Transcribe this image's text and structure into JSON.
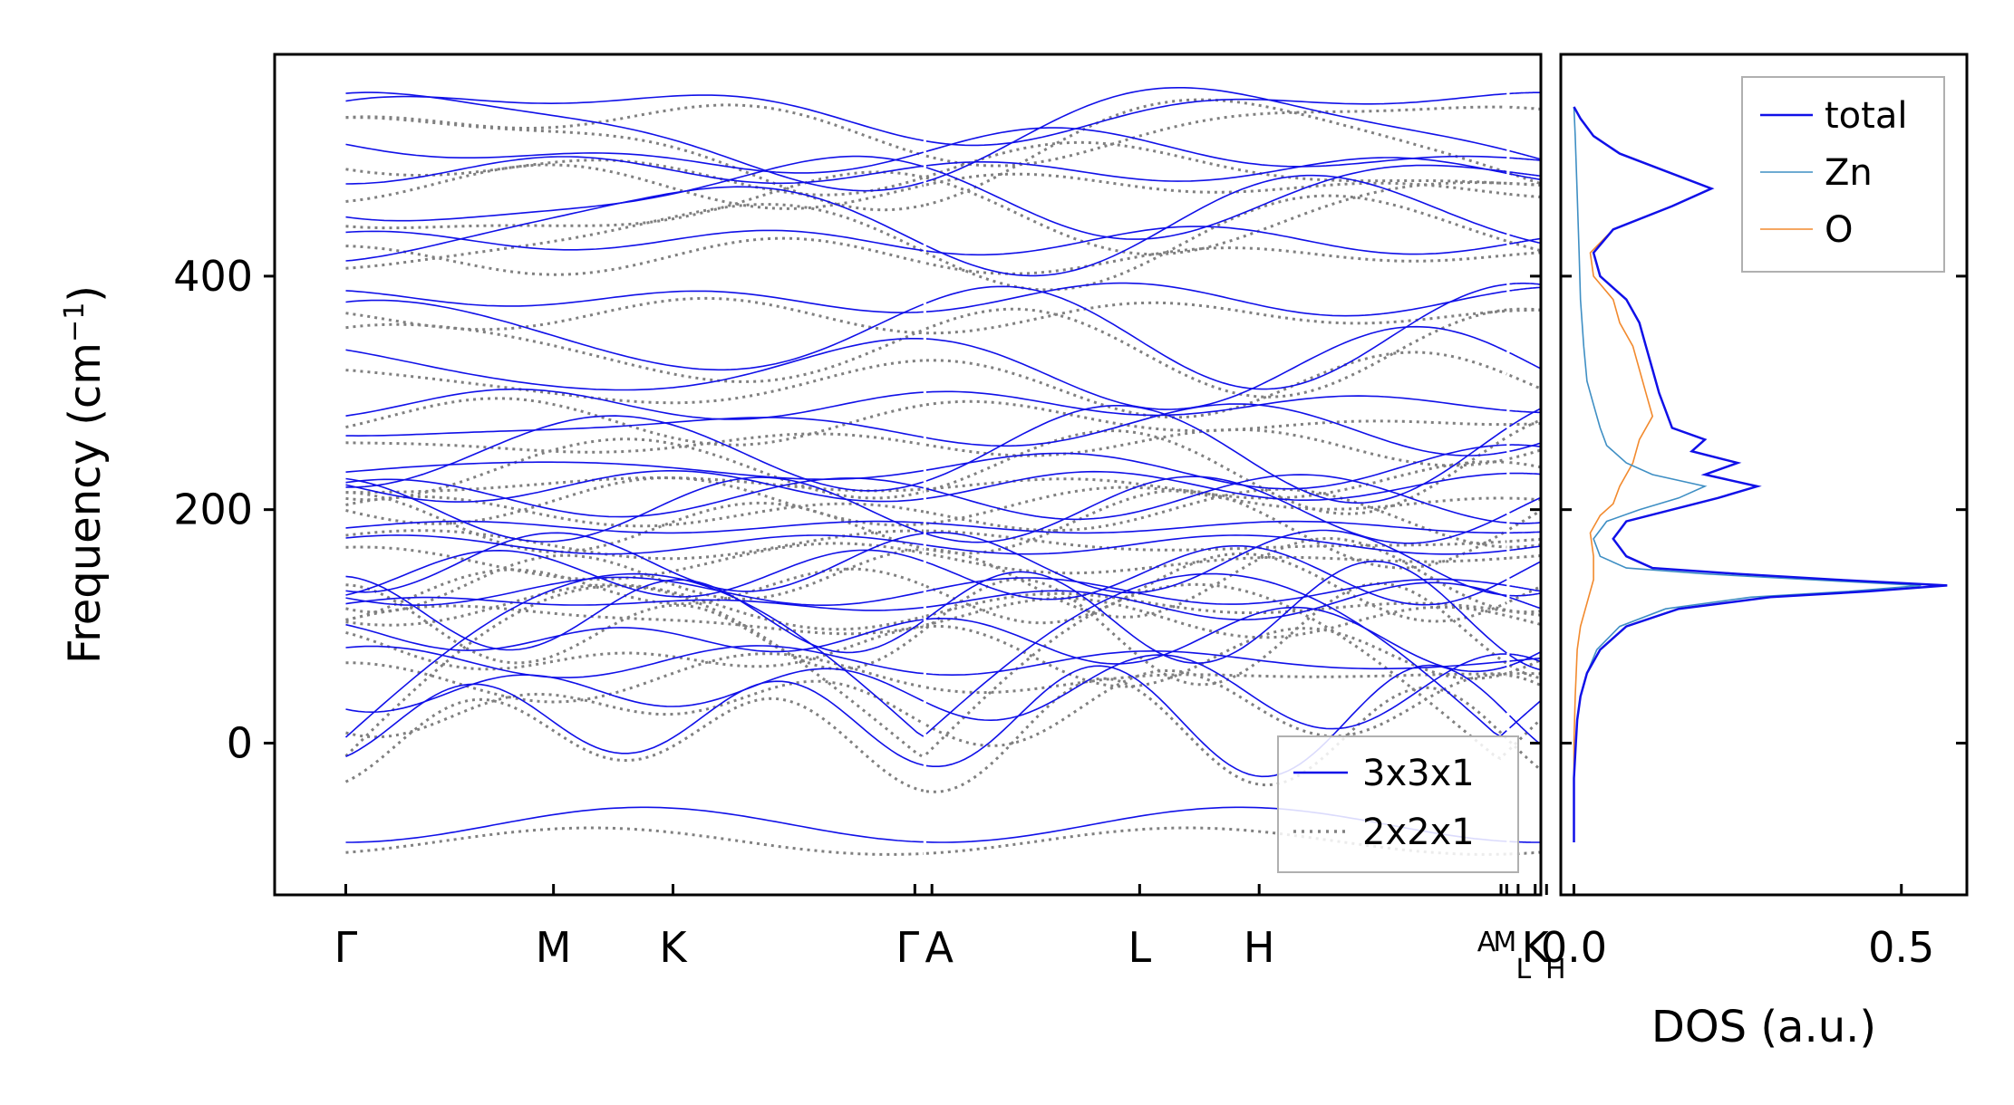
{
  "chart_data": [
    {
      "type": "line",
      "panel": "phonon band structure",
      "ylabel": "Frequency (cm",
      "ylabel_sup": "−1",
      "ylabel_close": ")",
      "ylim": [
        -130,
        590
      ],
      "yticks": [
        0,
        200,
        400
      ],
      "ytick_labels": [
        "0",
        "200",
        "400"
      ],
      "kpath_range": [
        -0.25,
        4.2
      ],
      "kpoints": [
        {
          "label": "Γ",
          "x": 0.0
        },
        {
          "label": "M",
          "x": 0.73
        },
        {
          "label": "K",
          "x": 1.15
        },
        {
          "label": "Γ",
          "x": 2.0
        },
        {
          "label": "A",
          "x": 2.06
        },
        {
          "label": "L",
          "x": 2.79
        },
        {
          "label": "H",
          "x": 3.21
        },
        {
          "label": "A",
          "x": 4.06
        },
        {
          "label": "M",
          "x": 4.08
        },
        {
          "label": "L",
          "x": 4.12
        },
        {
          "label": "K",
          "x": 4.18
        },
        {
          "label": "H",
          "x": 4.22
        }
      ],
      "segment_breaks": [
        2.03,
        4.08
      ],
      "series": [
        {
          "name": "3x3x1",
          "color": "#1010e8",
          "style": "solid"
        },
        {
          "name": "2x2x1",
          "color": "#808080",
          "style": "dotted"
        }
      ],
      "band_anchor_frequencies": [
        540,
        520,
        505,
        490,
        470,
        445,
        430,
        380,
        350,
        320,
        290,
        270,
        250,
        235,
        220,
        210,
        200,
        185,
        170,
        155,
        145,
        130,
        120,
        110,
        90,
        70,
        45,
        20,
        0,
        -85
      ],
      "legend": {
        "position": "lower right",
        "entries": [
          "3x3x1",
          "2x2x1"
        ]
      }
    },
    {
      "type": "line",
      "panel": "density of states",
      "xlabel": "DOS (a.u.)",
      "xlim": [
        -0.02,
        0.6
      ],
      "xticks": [
        0.0,
        0.5
      ],
      "xtick_labels": [
        "0.0",
        "0.5"
      ],
      "ylim": [
        -130,
        590
      ],
      "series": [
        {
          "name": "total",
          "color": "#1010e8",
          "points": [
            [
              0.0,
              -85
            ],
            [
              0.0,
              -60
            ],
            [
              0.0,
              -30
            ],
            [
              0.003,
              0
            ],
            [
              0.005,
              20
            ],
            [
              0.01,
              40
            ],
            [
              0.02,
              60
            ],
            [
              0.04,
              80
            ],
            [
              0.08,
              100
            ],
            [
              0.16,
              115
            ],
            [
              0.3,
              125
            ],
            [
              0.45,
              130
            ],
            [
              0.57,
              135
            ],
            [
              0.4,
              140
            ],
            [
              0.25,
              145
            ],
            [
              0.12,
              150
            ],
            [
              0.08,
              160
            ],
            [
              0.06,
              175
            ],
            [
              0.08,
              190
            ],
            [
              0.15,
              200
            ],
            [
              0.22,
              210
            ],
            [
              0.28,
              220
            ],
            [
              0.2,
              230
            ],
            [
              0.25,
              240
            ],
            [
              0.18,
              250
            ],
            [
              0.2,
              260
            ],
            [
              0.15,
              270
            ],
            [
              0.14,
              285
            ],
            [
              0.13,
              300
            ],
            [
              0.12,
              320
            ],
            [
              0.11,
              340
            ],
            [
              0.1,
              360
            ],
            [
              0.08,
              380
            ],
            [
              0.04,
              400
            ],
            [
              0.03,
              420
            ],
            [
              0.06,
              440
            ],
            [
              0.15,
              460
            ],
            [
              0.21,
              475
            ],
            [
              0.14,
              490
            ],
            [
              0.07,
              505
            ],
            [
              0.03,
              520
            ],
            [
              0.01,
              535
            ],
            [
              0.0,
              545
            ]
          ]
        },
        {
          "name": "Zn",
          "color": "#3f8fc4",
          "points": [
            [
              0.0,
              -85
            ],
            [
              0.0,
              -60
            ],
            [
              0.0,
              -30
            ],
            [
              0.003,
              0
            ],
            [
              0.005,
              20
            ],
            [
              0.01,
              40
            ],
            [
              0.02,
              60
            ],
            [
              0.035,
              80
            ],
            [
              0.07,
              100
            ],
            [
              0.14,
              115
            ],
            [
              0.27,
              125
            ],
            [
              0.42,
              130
            ],
            [
              0.53,
              135
            ],
            [
              0.36,
              140
            ],
            [
              0.2,
              145
            ],
            [
              0.08,
              150
            ],
            [
              0.04,
              160
            ],
            [
              0.03,
              175
            ],
            [
              0.05,
              190
            ],
            [
              0.1,
              200
            ],
            [
              0.16,
              210
            ],
            [
              0.2,
              220
            ],
            [
              0.12,
              230
            ],
            [
              0.08,
              240
            ],
            [
              0.05,
              255
            ],
            [
              0.04,
              270
            ],
            [
              0.03,
              290
            ],
            [
              0.02,
              310
            ],
            [
              0.015,
              340
            ],
            [
              0.01,
              380
            ],
            [
              0.008,
              420
            ],
            [
              0.005,
              470
            ],
            [
              0.002,
              520
            ],
            [
              0.0,
              545
            ]
          ]
        },
        {
          "name": "O",
          "color": "#f28a2e",
          "points": [
            [
              0.0,
              -85
            ],
            [
              0.0,
              -40
            ],
            [
              0.0,
              0
            ],
            [
              0.002,
              40
            ],
            [
              0.005,
              80
            ],
            [
              0.01,
              100
            ],
            [
              0.02,
              120
            ],
            [
              0.03,
              140
            ],
            [
              0.03,
              160
            ],
            [
              0.025,
              180
            ],
            [
              0.04,
              195
            ],
            [
              0.06,
              205
            ],
            [
              0.07,
              220
            ],
            [
              0.09,
              240
            ],
            [
              0.1,
              260
            ],
            [
              0.12,
              280
            ],
            [
              0.11,
              300
            ],
            [
              0.1,
              320
            ],
            [
              0.09,
              340
            ],
            [
              0.07,
              360
            ],
            [
              0.06,
              380
            ],
            [
              0.03,
              400
            ],
            [
              0.025,
              420
            ],
            [
              0.06,
              440
            ],
            [
              0.15,
              460
            ],
            [
              0.21,
              475
            ],
            [
              0.14,
              490
            ],
            [
              0.07,
              505
            ],
            [
              0.03,
              520
            ],
            [
              0.01,
              535
            ],
            [
              0.0,
              545
            ]
          ]
        }
      ],
      "legend": {
        "position": "upper right",
        "entries": [
          "total",
          "Zn",
          "O"
        ]
      }
    }
  ]
}
